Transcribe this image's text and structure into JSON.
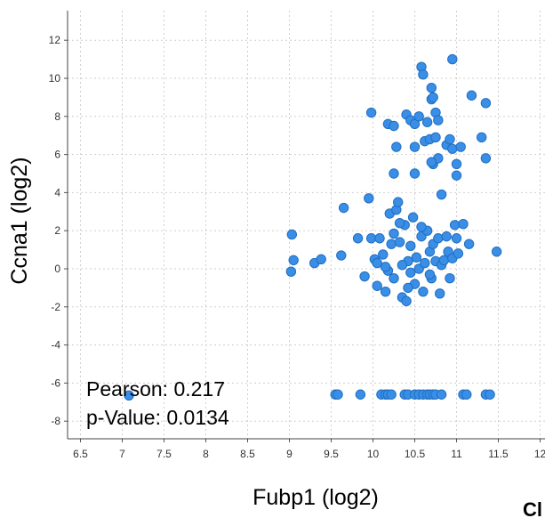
{
  "chart_data": {
    "type": "scatter",
    "title": "",
    "xlabel": "Fubp1 (log2)",
    "ylabel": "Ccna1 (log2)",
    "xlim": [
      6.5,
      12
    ],
    "ylim": [
      -9,
      13.5
    ],
    "x_ticks": [
      "6.5",
      "7",
      "7.5",
      "8",
      "8.5",
      "9",
      "9.5",
      "10",
      "10.5",
      "11",
      "11.5",
      "12"
    ],
    "y_ticks": [
      "-8",
      "-6",
      "-4",
      "-2",
      "0",
      "2",
      "4",
      "6",
      "8",
      "10",
      "12"
    ],
    "grid": true,
    "point_color": "#3a8ee6",
    "point_edge_color": "#1f6fc2",
    "stats": {
      "pearson": "Pearson: 0.217",
      "p_value": "p-Value: 0.0134"
    },
    "corner_text": "Cl",
    "points": [
      [
        7.08,
        -6.65
      ],
      [
        9.03,
        1.8
      ],
      [
        9.02,
        -0.15
      ],
      [
        9.05,
        0.45
      ],
      [
        9.3,
        0.3
      ],
      [
        9.38,
        0.5
      ],
      [
        9.62,
        0.7
      ],
      [
        9.65,
        3.2
      ],
      [
        9.82,
        1.6
      ],
      [
        9.9,
        -0.4
      ],
      [
        9.95,
        3.7
      ],
      [
        9.98,
        1.6
      ],
      [
        10.02,
        0.5
      ],
      [
        10.05,
        -0.9
      ],
      [
        10.08,
        1.6
      ],
      [
        10.12,
        0.75
      ],
      [
        10.15,
        -1.2
      ],
      [
        10.18,
        -0.1
      ],
      [
        10.2,
        2.9
      ],
      [
        10.22,
        1.3
      ],
      [
        10.25,
        1.85
      ],
      [
        10.28,
        3.1
      ],
      [
        10.3,
        3.5
      ],
      [
        10.32,
        1.4
      ],
      [
        10.35,
        -1.5
      ],
      [
        10.38,
        2.3
      ],
      [
        10.4,
        -1.7
      ],
      [
        10.42,
        0.4
      ],
      [
        10.45,
        1.2
      ],
      [
        10.48,
        2.7
      ],
      [
        10.5,
        -0.8
      ],
      [
        10.52,
        0.6
      ],
      [
        10.55,
        0.0
      ],
      [
        10.58,
        1.7
      ],
      [
        10.6,
        -1.2
      ],
      [
        10.62,
        0.3
      ],
      [
        10.65,
        2.0
      ],
      [
        10.68,
        0.9
      ],
      [
        10.7,
        -0.5
      ],
      [
        10.72,
        1.3
      ],
      [
        10.75,
        0.4
      ],
      [
        10.78,
        1.6
      ],
      [
        10.8,
        -1.3
      ],
      [
        10.82,
        0.2
      ],
      [
        10.85,
        0.45
      ],
      [
        10.88,
        1.7
      ],
      [
        10.9,
        0.9
      ],
      [
        10.92,
        -0.5
      ],
      [
        10.95,
        0.55
      ],
      [
        10.98,
        2.3
      ],
      [
        11.0,
        1.6
      ],
      [
        11.02,
        0.8
      ],
      [
        11.08,
        2.35
      ],
      [
        11.15,
        1.3
      ],
      [
        10.25,
        -0.5
      ],
      [
        10.35,
        0.2
      ],
      [
        10.45,
        -0.2
      ],
      [
        10.15,
        0.1
      ],
      [
        10.05,
        0.3
      ],
      [
        10.42,
        -1.0
      ],
      [
        10.68,
        -0.3
      ],
      [
        9.98,
        8.2
      ],
      [
        10.18,
        7.6
      ],
      [
        10.25,
        7.5
      ],
      [
        10.4,
        8.1
      ],
      [
        10.45,
        7.8
      ],
      [
        10.5,
        7.6
      ],
      [
        10.55,
        8.0
      ],
      [
        10.65,
        7.7
      ],
      [
        10.7,
        8.9
      ],
      [
        10.75,
        8.2
      ],
      [
        10.78,
        7.8
      ],
      [
        10.58,
        10.6
      ],
      [
        10.6,
        10.2
      ],
      [
        10.7,
        9.5
      ],
      [
        10.72,
        9.0
      ],
      [
        10.95,
        11.0
      ],
      [
        11.18,
        9.1
      ],
      [
        11.35,
        8.7
      ],
      [
        10.28,
        6.4
      ],
      [
        10.5,
        6.4
      ],
      [
        10.62,
        6.7
      ],
      [
        10.68,
        6.8
      ],
      [
        10.72,
        5.5
      ],
      [
        10.75,
        6.9
      ],
      [
        10.78,
        5.8
      ],
      [
        10.88,
        6.5
      ],
      [
        10.92,
        6.8
      ],
      [
        10.95,
        6.3
      ],
      [
        11.0,
        5.5
      ],
      [
        11.05,
        6.4
      ],
      [
        11.3,
        6.9
      ],
      [
        11.35,
        5.8
      ],
      [
        10.25,
        5.0
      ],
      [
        10.5,
        5.0
      ],
      [
        10.82,
        3.9
      ],
      [
        11.0,
        4.9
      ],
      [
        10.7,
        5.6
      ],
      [
        9.55,
        -6.6
      ],
      [
        9.58,
        -6.6
      ],
      [
        9.85,
        -6.6
      ],
      [
        10.1,
        -6.6
      ],
      [
        10.15,
        -6.6
      ],
      [
        10.18,
        -6.6
      ],
      [
        10.22,
        -6.6
      ],
      [
        10.38,
        -6.6
      ],
      [
        10.42,
        -6.6
      ],
      [
        10.5,
        -6.6
      ],
      [
        10.55,
        -6.6
      ],
      [
        10.6,
        -6.6
      ],
      [
        10.65,
        -6.6
      ],
      [
        10.68,
        -6.6
      ],
      [
        10.72,
        -6.6
      ],
      [
        10.75,
        -6.6
      ],
      [
        10.82,
        -6.6
      ],
      [
        11.08,
        -6.6
      ],
      [
        11.12,
        -6.6
      ],
      [
        11.35,
        -6.6
      ],
      [
        11.4,
        -6.6
      ],
      [
        11.48,
        0.9
      ],
      [
        10.32,
        2.4
      ],
      [
        10.58,
        2.2
      ]
    ]
  }
}
